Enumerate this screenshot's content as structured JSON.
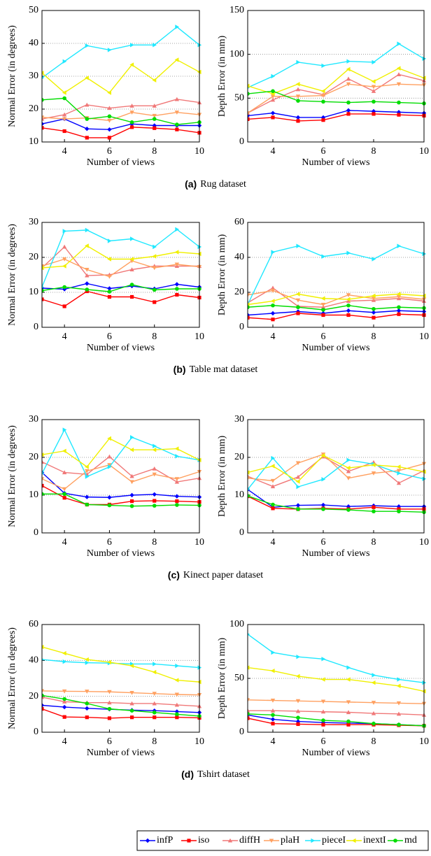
{
  "chart_data": [
    {
      "type": "line",
      "xlabel": "Number of views",
      "ylabel": "Normal Error (in degrees)",
      "x": [
        3,
        4,
        5,
        6,
        7,
        8,
        9,
        10
      ],
      "xlim": [
        3,
        10
      ],
      "xticks": [
        4,
        6,
        8,
        10
      ],
      "ylim": [
        10,
        50
      ],
      "yticks": [
        10,
        20,
        30,
        40,
        50
      ],
      "grid": true,
      "series": [
        {
          "values": [
            15.5,
            17,
            14,
            13.8,
            15.5,
            15,
            15,
            15
          ]
        },
        {
          "values": [
            14.3,
            13.3,
            11.3,
            11.3,
            14.5,
            14.2,
            13.8,
            12.8
          ]
        },
        {
          "values": [
            17,
            18.3,
            21.3,
            20.3,
            21,
            21,
            23,
            22
          ]
        },
        {
          "values": [
            17.5,
            17,
            17.3,
            16.5,
            19,
            18,
            19,
            18.3
          ]
        },
        {
          "values": [
            29.5,
            34.5,
            39.3,
            38,
            39.5,
            39.5,
            45,
            39.5
          ]
        },
        {
          "values": [
            31,
            25,
            29.5,
            25,
            33.5,
            28.8,
            35,
            31.3
          ]
        },
        {
          "values": [
            22.8,
            23.3,
            17,
            17.8,
            16,
            17,
            15.3,
            16
          ]
        }
      ]
    },
    {
      "type": "line",
      "xlabel": "Number of views",
      "ylabel": "Depth Error (in mm)",
      "x": [
        3,
        4,
        5,
        6,
        7,
        8,
        9,
        10
      ],
      "xlim": [
        3,
        10
      ],
      "xticks": [
        4,
        6,
        8,
        10
      ],
      "ylim": [
        0,
        150
      ],
      "yticks": [
        0,
        50,
        100,
        150
      ],
      "grid": true,
      "series": [
        {
          "values": [
            30,
            33,
            28,
            28,
            36,
            35,
            34,
            33
          ]
        },
        {
          "values": [
            26,
            28,
            24,
            25,
            32,
            32,
            31,
            30
          ]
        },
        {
          "values": [
            33,
            48,
            60,
            54,
            72,
            58,
            77,
            70
          ]
        },
        {
          "values": [
            33,
            52,
            52,
            53,
            66,
            63,
            66,
            65
          ]
        },
        {
          "values": [
            62,
            75,
            91,
            87,
            92,
            91,
            112,
            95
          ]
        },
        {
          "values": [
            64,
            55,
            66,
            58,
            83,
            69,
            84,
            73
          ]
        },
        {
          "values": [
            55,
            58,
            47,
            46,
            45,
            46,
            45,
            44
          ]
        }
      ]
    },
    {
      "type": "line",
      "xlabel": "Number of views",
      "ylabel": "Normal Error (in degrees)",
      "x": [
        3,
        4,
        5,
        6,
        7,
        8,
        9,
        10
      ],
      "xlim": [
        3,
        10
      ],
      "xticks": [
        4,
        6,
        8,
        10
      ],
      "ylim": [
        0,
        30
      ],
      "yticks": [
        0,
        10,
        20,
        30
      ],
      "grid": true,
      "series": [
        {
          "values": [
            11.2,
            10.9,
            12.5,
            11.1,
            11.8,
            11,
            12.3,
            11.5
          ]
        },
        {
          "values": [
            8,
            6,
            10.3,
            8.7,
            8.7,
            7.2,
            9.3,
            8.5
          ]
        },
        {
          "values": [
            17,
            23,
            14.8,
            15,
            16.5,
            17.5,
            17.5,
            17.5
          ]
        },
        {
          "values": [
            17.5,
            19.5,
            16.5,
            14.5,
            19,
            17,
            18,
            17.3
          ]
        },
        {
          "values": [
            11.5,
            27.5,
            27.8,
            24.7,
            25.3,
            23,
            28,
            23
          ]
        },
        {
          "values": [
            17,
            17.5,
            23.3,
            19.5,
            19.5,
            20.3,
            21.5,
            21
          ]
        },
        {
          "values": [
            10.5,
            11.5,
            10.8,
            10.2,
            12.2,
            10.7,
            11,
            11
          ]
        }
      ]
    },
    {
      "type": "line",
      "xlabel": "Number of views",
      "ylabel": "Depth Error (in mm)",
      "x": [
        3,
        4,
        5,
        6,
        7,
        8,
        9,
        10
      ],
      "xlim": [
        3,
        10
      ],
      "xticks": [
        4,
        6,
        8,
        10
      ],
      "ylim": [
        0,
        60
      ],
      "yticks": [
        0,
        20,
        40,
        60
      ],
      "grid": true,
      "series": [
        {
          "values": [
            7,
            8,
            9,
            8,
            9.5,
            8.5,
            9.5,
            9
          ]
        },
        {
          "values": [
            5.5,
            4.5,
            8,
            7,
            7,
            5.5,
            7.5,
            7
          ]
        },
        {
          "values": [
            14,
            22.5,
            12,
            11.5,
            15,
            15.5,
            16.5,
            15
          ]
        },
        {
          "values": [
            18.5,
            21,
            15.5,
            13,
            18.5,
            16.5,
            17.5,
            16
          ]
        },
        {
          "values": [
            13,
            43,
            46.5,
            40.5,
            42.5,
            39,
            46.5,
            42
          ]
        },
        {
          "values": [
            13,
            15,
            19,
            16.5,
            16,
            18,
            19,
            18
          ]
        },
        {
          "values": [
            11.5,
            12.5,
            11.5,
            10,
            12.5,
            10.5,
            11.5,
            11
          ]
        }
      ]
    },
    {
      "type": "line",
      "xlabel": "Number of views",
      "ylabel": "Normal Error (in degrees)",
      "x": [
        3,
        4,
        5,
        6,
        7,
        8,
        9,
        10
      ],
      "xlim": [
        3,
        10
      ],
      "xticks": [
        4,
        6,
        8,
        10
      ],
      "ylim": [
        0,
        30
      ],
      "yticks": [
        0,
        10,
        20,
        30
      ],
      "grid": true,
      "series": [
        {
          "values": [
            16,
            10.5,
            9.5,
            9.4,
            10,
            10.2,
            9.7,
            9.5
          ]
        },
        {
          "values": [
            12.5,
            9.3,
            7.5,
            7.5,
            8.4,
            8.5,
            8.4,
            8.2
          ]
        },
        {
          "values": [
            18.8,
            16,
            15.5,
            20.2,
            15,
            17,
            13.5,
            14.5
          ]
        },
        {
          "values": [
            14.3,
            11.6,
            16.4,
            18,
            13.5,
            15.5,
            14.3,
            16.2
          ]
        },
        {
          "values": [
            15.7,
            27.3,
            14.9,
            17.5,
            25.3,
            23,
            20.3,
            19.3
          ]
        },
        {
          "values": [
            20.7,
            21.7,
            17.5,
            25,
            22,
            22,
            22.3,
            19.3
          ]
        },
        {
          "values": [
            10.3,
            10.3,
            7.5,
            7.3,
            7.1,
            7.2,
            7.4,
            7.3
          ]
        }
      ]
    },
    {
      "type": "line",
      "xlabel": "Number of views",
      "ylabel": "Depth Error (in mm)",
      "x": [
        3,
        4,
        5,
        6,
        7,
        8,
        9,
        10
      ],
      "xlim": [
        3,
        10
      ],
      "xticks": [
        4,
        6,
        8,
        10
      ],
      "ylim": [
        0,
        30
      ],
      "yticks": [
        0,
        10,
        20,
        30
      ],
      "grid": true,
      "series": [
        {
          "values": [
            11.5,
            6.8,
            7.3,
            7.4,
            7,
            7.2,
            7,
            7
          ]
        },
        {
          "values": [
            9.7,
            6.5,
            6.3,
            6.5,
            6.3,
            6.8,
            6.3,
            6.3
          ]
        },
        {
          "values": [
            15,
            12.3,
            14.8,
            20.2,
            16.3,
            18.7,
            13.2,
            16.5
          ]
        },
        {
          "values": [
            14.5,
            13.8,
            18.5,
            20.8,
            14.5,
            15.8,
            16.5,
            18.3
          ]
        },
        {
          "values": [
            11.5,
            19.8,
            12.2,
            14.2,
            19.3,
            18.2,
            15.8,
            14.3
          ]
        },
        {
          "values": [
            16,
            17.7,
            13.6,
            20.5,
            17.2,
            18,
            17.5,
            16.2
          ]
        },
        {
          "values": [
            9.8,
            7.5,
            6.3,
            6.3,
            6.1,
            5.7,
            5.7,
            5.5
          ]
        }
      ]
    },
    {
      "type": "line",
      "xlabel": "Number of views",
      "ylabel": "Normal Error (in degrees)",
      "x": [
        3,
        4,
        5,
        6,
        7,
        8,
        9,
        10
      ],
      "xlim": [
        3,
        10
      ],
      "xticks": [
        4,
        6,
        8,
        10
      ],
      "ylim": [
        0,
        60
      ],
      "yticks": [
        0,
        20,
        40,
        60
      ],
      "grid": true,
      "series": [
        {
          "values": [
            15,
            14,
            13.3,
            12.8,
            12.3,
            12,
            11.5,
            11
          ]
        },
        {
          "values": [
            13,
            8.5,
            8.3,
            7.8,
            8.3,
            8.3,
            8.3,
            8
          ]
        },
        {
          "values": [
            19.5,
            17,
            16.5,
            16.5,
            16,
            16,
            15.2,
            14.5
          ]
        },
        {
          "values": [
            23,
            22.8,
            22.7,
            22.5,
            22,
            21.5,
            21,
            20.8
          ]
        },
        {
          "values": [
            40.5,
            39.3,
            38.7,
            38.5,
            38,
            38,
            37,
            36
          ]
        },
        {
          "values": [
            47.5,
            44,
            40.5,
            39,
            37,
            33.5,
            29,
            28
          ]
        },
        {
          "values": [
            20.5,
            18.5,
            16,
            13,
            12,
            11,
            10,
            9
          ]
        }
      ]
    },
    {
      "type": "line",
      "xlabel": "Number of views",
      "ylabel": "Depth Error (in mm)",
      "x": [
        3,
        4,
        5,
        6,
        7,
        8,
        9,
        10
      ],
      "xlim": [
        3,
        10
      ],
      "xticks": [
        4,
        6,
        8,
        10
      ],
      "ylim": [
        0,
        100
      ],
      "yticks": [
        0,
        50,
        100
      ],
      "grid": true,
      "series": [
        {
          "values": [
            16,
            12,
            10,
            9,
            8.5,
            8,
            7,
            6
          ]
        },
        {
          "values": [
            13,
            8,
            7.5,
            7,
            7,
            7,
            6.5,
            6
          ]
        },
        {
          "values": [
            20,
            20,
            19.5,
            19,
            18.5,
            17.5,
            17,
            16
          ]
        },
        {
          "values": [
            30,
            29.5,
            29,
            28.5,
            28,
            27.5,
            27,
            26.5
          ]
        },
        {
          "values": [
            91,
            74,
            70,
            68,
            60,
            53,
            49,
            46
          ]
        },
        {
          "values": [
            60,
            57,
            52,
            49,
            49,
            46,
            43,
            38
          ]
        },
        {
          "values": [
            17,
            16,
            13.5,
            11,
            10,
            8,
            7,
            6
          ]
        }
      ]
    }
  ],
  "captions": [
    {
      "label": "(a)",
      "text": "Rug dataset"
    },
    {
      "label": "(b)",
      "text": "Table mat dataset"
    },
    {
      "label": "(c)",
      "text": "Kinect paper dataset"
    },
    {
      "label": "(d)",
      "text": "Tshirt dataset"
    }
  ],
  "legend": [
    {
      "name": "infP",
      "color": "#0000ff",
      "marker": "diamond"
    },
    {
      "name": "iso",
      "color": "#ff0000",
      "marker": "square"
    },
    {
      "name": "diffH",
      "color": "#f07878",
      "marker": "tri-up"
    },
    {
      "name": "plaH",
      "color": "#ffa060",
      "marker": "tri-down"
    },
    {
      "name": "pieceI",
      "color": "#20e8ff",
      "marker": "tri-right"
    },
    {
      "name": "inextI",
      "color": "#f0f000",
      "marker": "tri-left"
    },
    {
      "name": "md",
      "color": "#00dd00",
      "marker": "circle"
    }
  ]
}
